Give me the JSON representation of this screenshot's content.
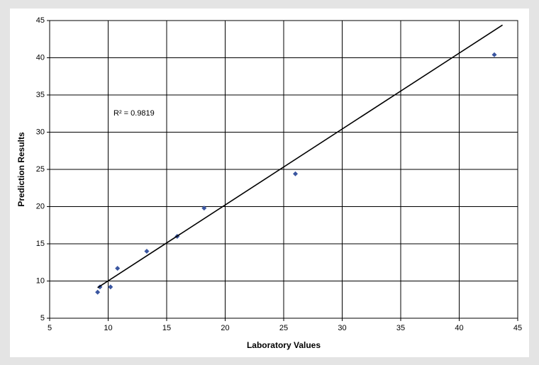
{
  "chart_data": {
    "type": "scatter",
    "x_label": "Laboratory Values",
    "y_label": "Prediction Results",
    "annotation": "R² = 0.9819",
    "x": [
      9.1,
      9.3,
      10.2,
      10.8,
      13.3,
      15.9,
      18.2,
      26.0,
      43.0
    ],
    "values": [
      8.5,
      9.2,
      9.2,
      11.7,
      14.0,
      16.0,
      19.8,
      24.4,
      40.4
    ],
    "color": "#3a56a0",
    "trendline": {
      "x": [
        9.1,
        43.7
      ],
      "y": [
        9.1,
        44.4
      ],
      "color": "#000000"
    },
    "xlim": [
      5,
      45
    ],
    "xticks": [
      5,
      10,
      15,
      20,
      25,
      30,
      35,
      40,
      45
    ],
    "ylim": [
      5,
      45
    ],
    "yticks": [
      5,
      10,
      15,
      20,
      25,
      30,
      35,
      40,
      45
    ],
    "grid": true
  }
}
